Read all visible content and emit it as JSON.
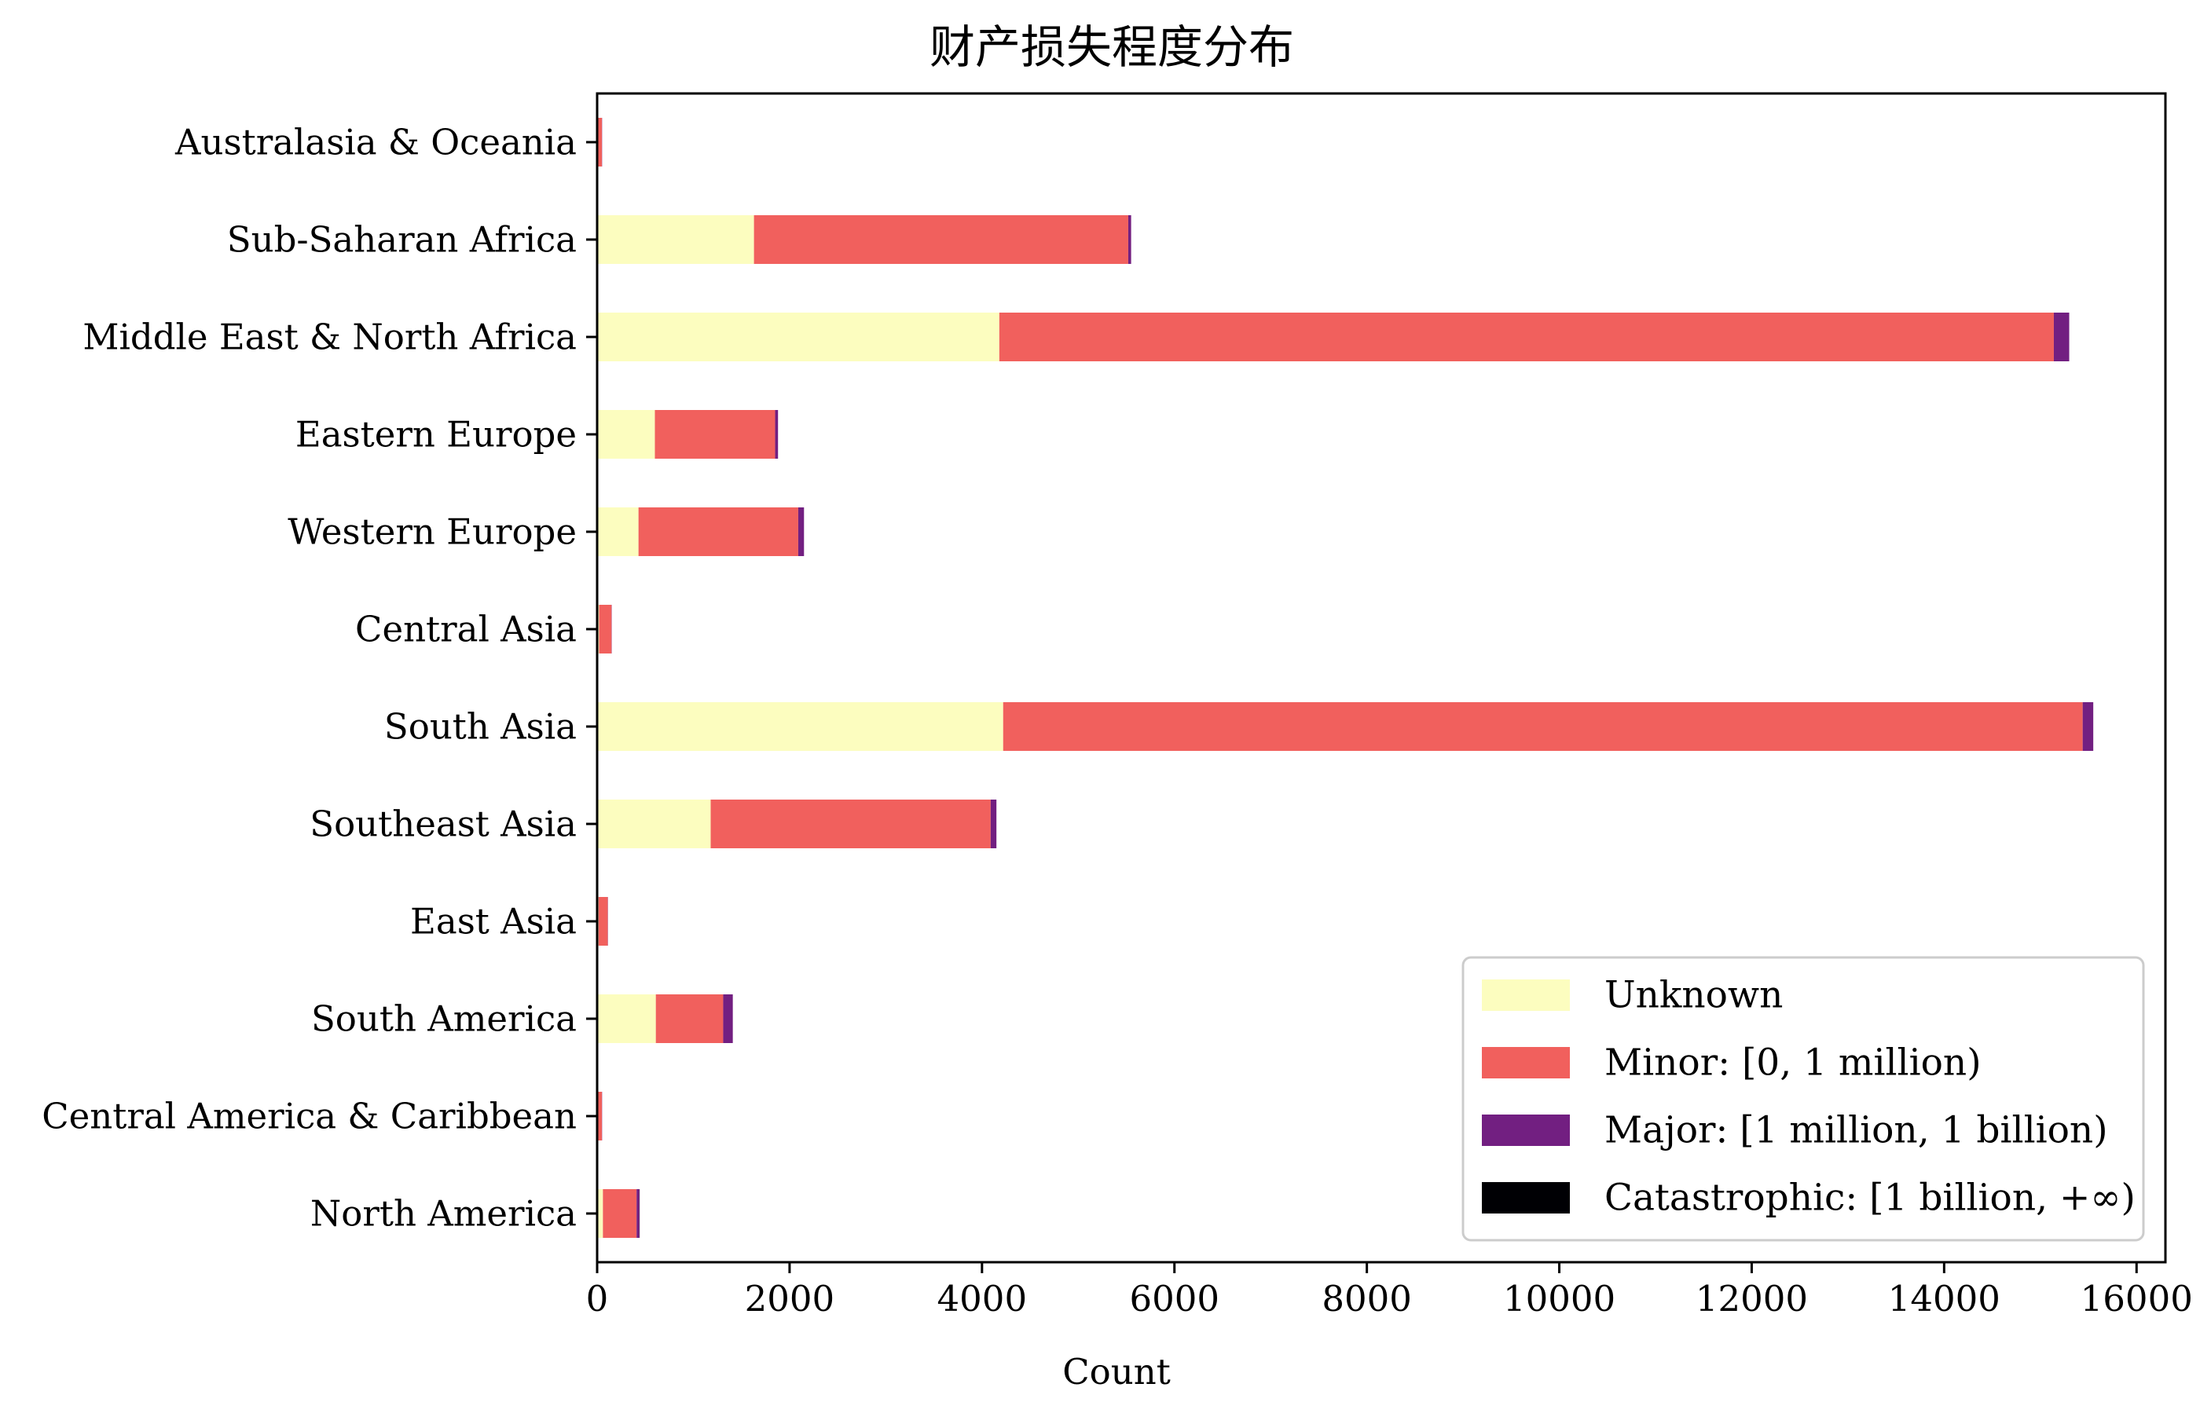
{
  "chart_data": {
    "type": "bar",
    "orientation": "horizontal",
    "stacked": true,
    "title": "财产损失程度分布",
    "xlabel": "Count",
    "ylabel": "",
    "xlim": [
      0,
      16300
    ],
    "xticks": [
      0,
      2000,
      4000,
      6000,
      8000,
      10000,
      12000,
      14000,
      16000
    ],
    "grid": false,
    "legend_position": "lower-right",
    "categories": [
      "Australasia & Oceania",
      "Sub-Saharan Africa",
      "Middle East & North Africa",
      "Eastern Europe",
      "Western Europe",
      "Central Asia",
      "South Asia",
      "Southeast Asia",
      "East Asia",
      "South America",
      "Central America & Caribbean",
      "North America"
    ],
    "series": [
      {
        "name": "Unknown",
        "color": "#fcfdbf",
        "values": [
          5,
          1630,
          4180,
          600,
          430,
          20,
          4220,
          1180,
          15,
          610,
          10,
          60
        ]
      },
      {
        "name": "Minor: [0, 1 million)",
        "color": "#f1605d",
        "values": [
          45,
          3890,
          10960,
          1250,
          1660,
          130,
          11220,
          2910,
          95,
          700,
          40,
          350
        ]
      },
      {
        "name": "Major: [1 million, 1 billion)",
        "color": "#721f81",
        "values": [
          2,
          30,
          160,
          30,
          60,
          2,
          110,
          60,
          2,
          100,
          2,
          30
        ]
      },
      {
        "name": "Catastrophic: [1 billion, +∞)",
        "color": "#000004",
        "values": [
          0,
          0,
          0,
          0,
          0,
          0,
          0,
          0,
          0,
          0,
          0,
          2
        ]
      }
    ]
  }
}
